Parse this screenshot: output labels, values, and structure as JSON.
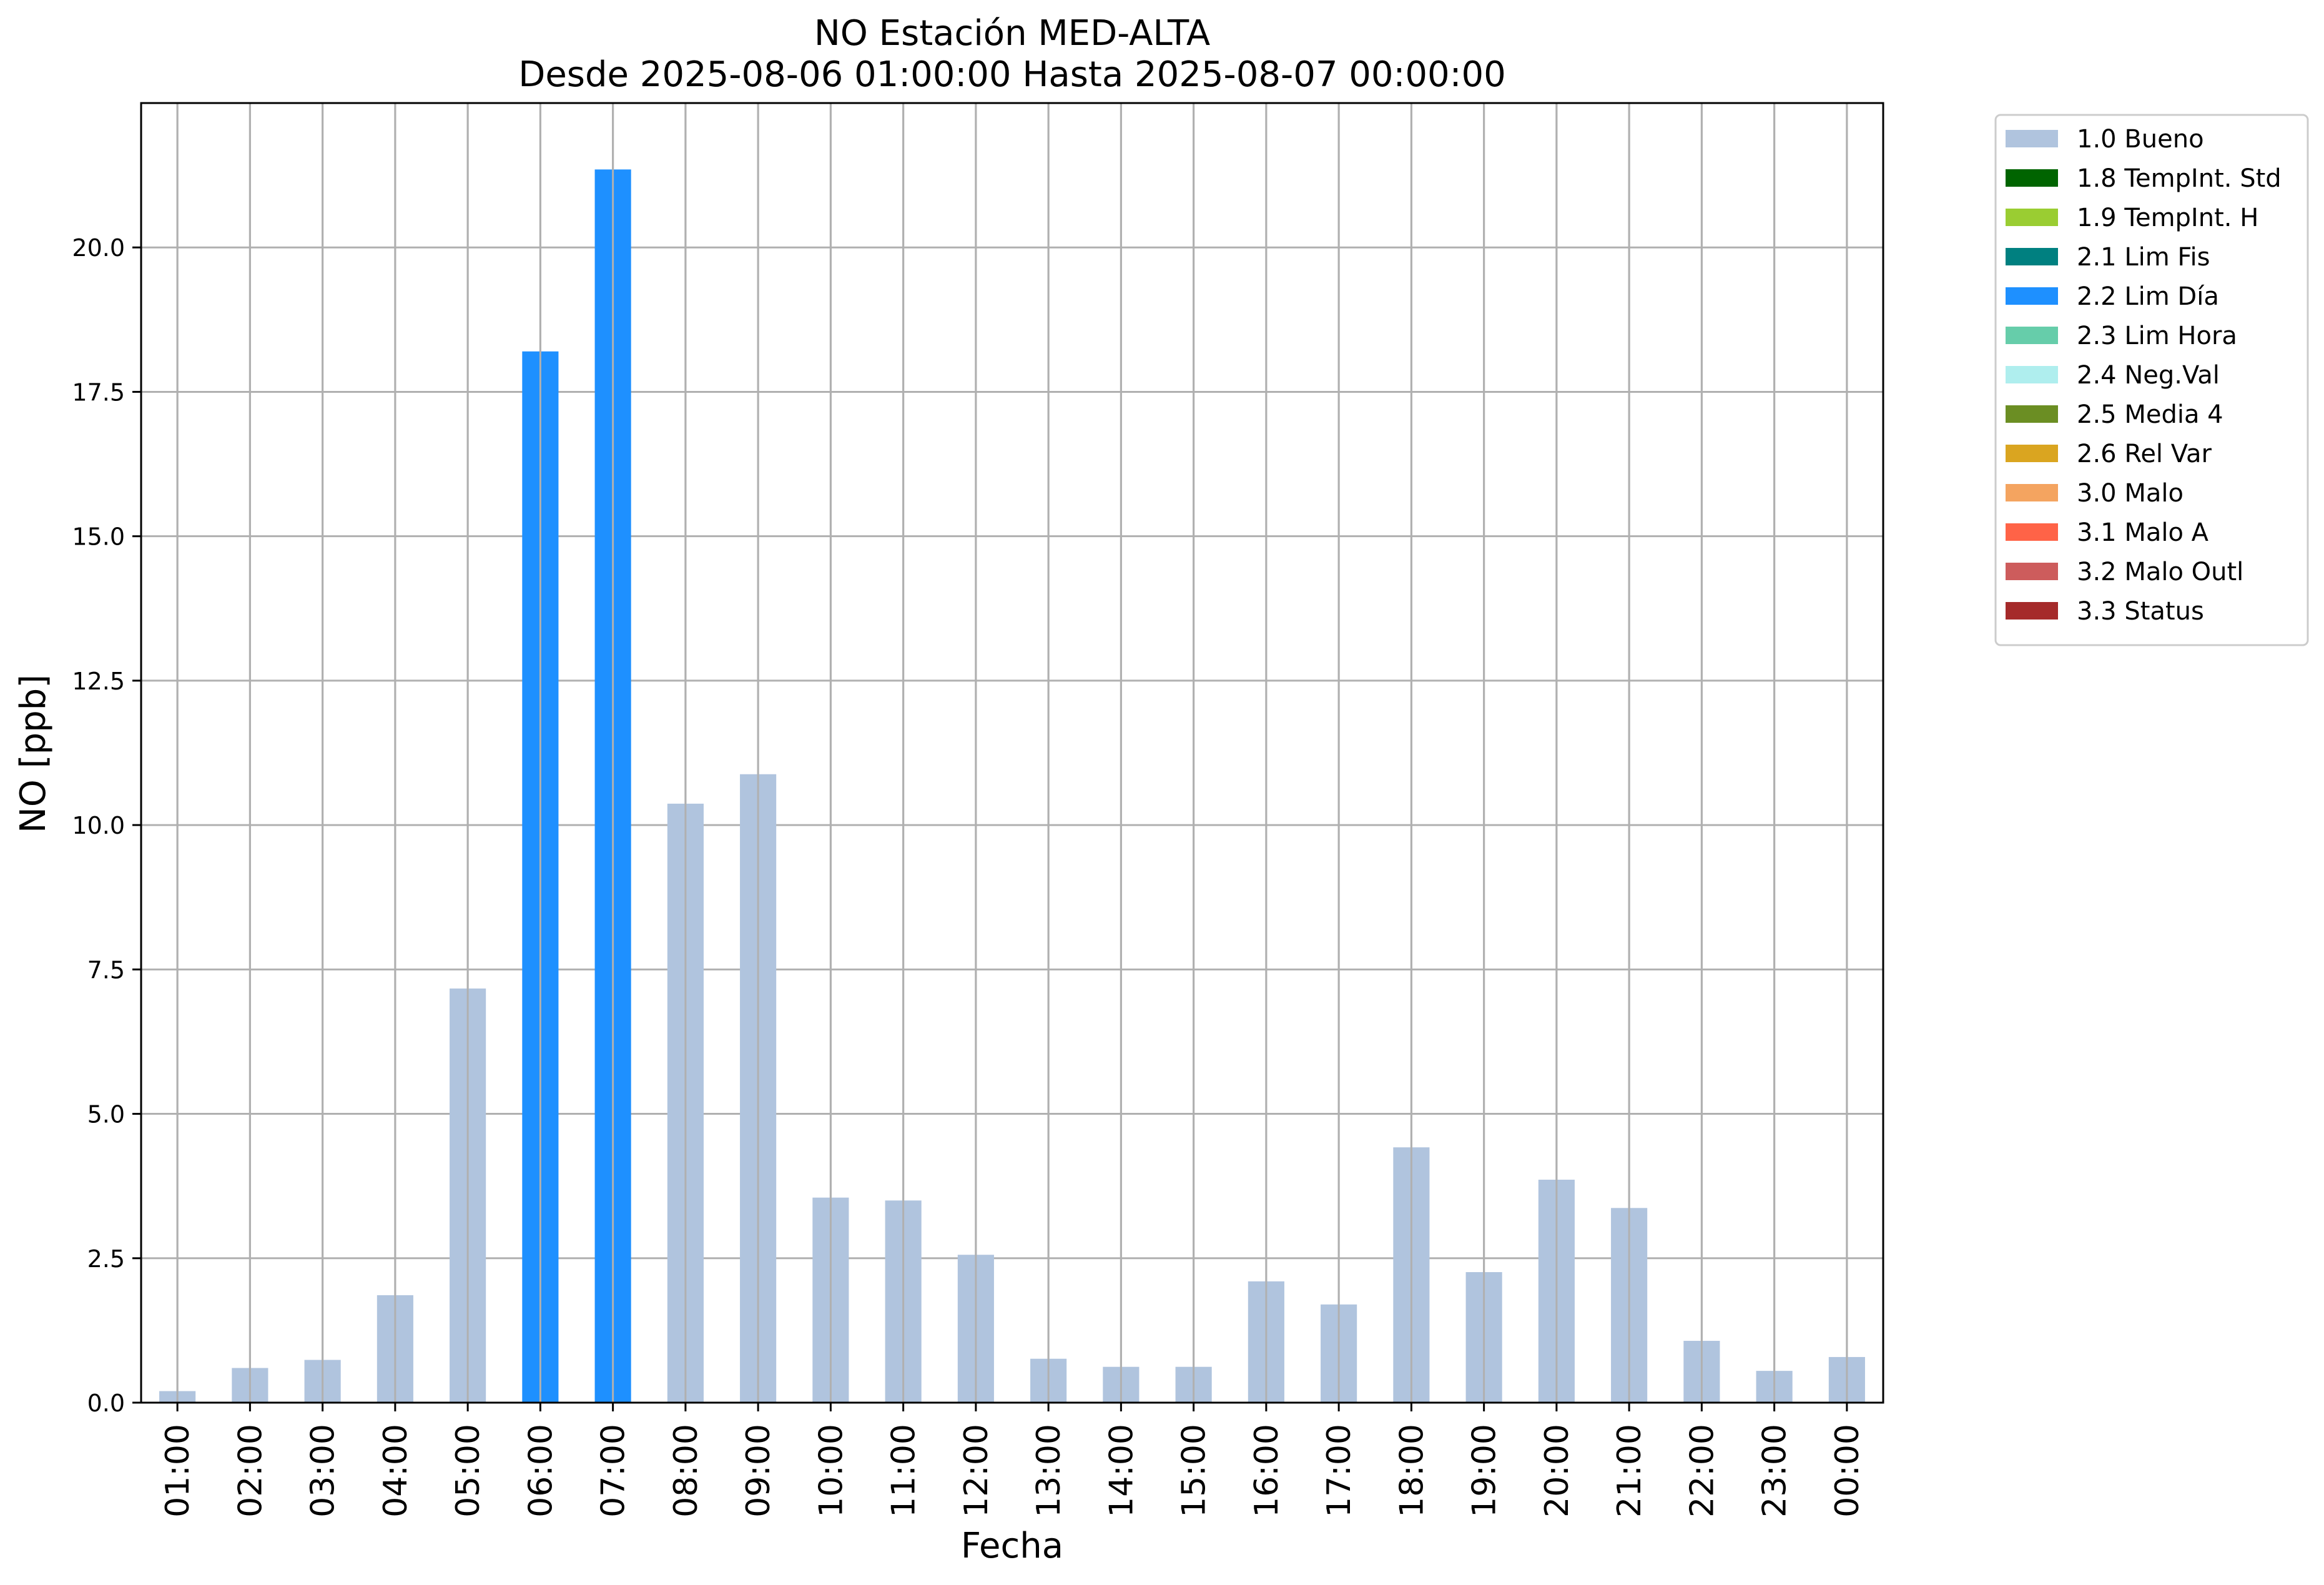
{
  "chart_data": {
    "type": "bar",
    "title": "NO Estación MED-ALTA",
    "subtitle": "Desde 2025-08-06 01:00:00 Hasta 2025-08-07 00:00:00",
    "xlabel": "Fecha",
    "ylabel": "NO [ppb]",
    "ylim": [
      0,
      22.5
    ],
    "yticks": [
      "0.0",
      "2.5",
      "5.0",
      "7.5",
      "10.0",
      "12.5",
      "15.0",
      "17.5",
      "20.0"
    ],
    "grid": true,
    "legend_position": "outside-top-right",
    "categories": [
      "01:00",
      "02:00",
      "03:00",
      "04:00",
      "05:00",
      "06:00",
      "07:00",
      "08:00",
      "09:00",
      "10:00",
      "11:00",
      "12:00",
      "13:00",
      "14:00",
      "15:00",
      "16:00",
      "17:00",
      "18:00",
      "19:00",
      "20:00",
      "21:00",
      "22:00",
      "23:00",
      "00:00"
    ],
    "values": [
      0.2,
      0.6,
      0.74,
      1.86,
      7.17,
      18.2,
      21.35,
      10.37,
      10.88,
      3.55,
      3.5,
      2.56,
      0.76,
      0.62,
      0.62,
      2.1,
      1.7,
      4.42,
      2.26,
      3.86,
      3.37,
      1.07,
      0.55,
      0.79
    ],
    "flags": [
      "1.0 Bueno",
      "1.0 Bueno",
      "1.0 Bueno",
      "1.0 Bueno",
      "1.0 Bueno",
      "2.2 Lim Día",
      "2.2 Lim Día",
      "1.0 Bueno",
      "1.0 Bueno",
      "1.0 Bueno",
      "1.0 Bueno",
      "1.0 Bueno",
      "1.0 Bueno",
      "1.0 Bueno",
      "1.0 Bueno",
      "1.0 Bueno",
      "1.0 Bueno",
      "1.0 Bueno",
      "1.0 Bueno",
      "1.0 Bueno",
      "1.0 Bueno",
      "1.0 Bueno",
      "1.0 Bueno",
      "1.0 Bueno"
    ],
    "legend": [
      {
        "label": "1.0 Bueno",
        "color": "#b0c4de"
      },
      {
        "label": "1.8 TempInt. Std",
        "color": "#006400"
      },
      {
        "label": "1.9 TempInt. H",
        "color": "#9acd32"
      },
      {
        "label": "2.1 Lim Fis",
        "color": "#008080"
      },
      {
        "label": "2.2 Lim Día",
        "color": "#1e90ff"
      },
      {
        "label": "2.3 Lim Hora",
        "color": "#66cdaa"
      },
      {
        "label": "2.4 Neg.Val",
        "color": "#afeeee"
      },
      {
        "label": "2.5 Media 4",
        "color": "#6b8e23"
      },
      {
        "label": "2.6 Rel Var",
        "color": "#daa520"
      },
      {
        "label": "3.0 Malo",
        "color": "#f4a460"
      },
      {
        "label": "3.1 Malo A",
        "color": "#ff6347"
      },
      {
        "label": "3.2 Malo Outl",
        "color": "#cd5c5c"
      },
      {
        "label": "3.3 Status",
        "color": "#a52a2a"
      }
    ]
  }
}
